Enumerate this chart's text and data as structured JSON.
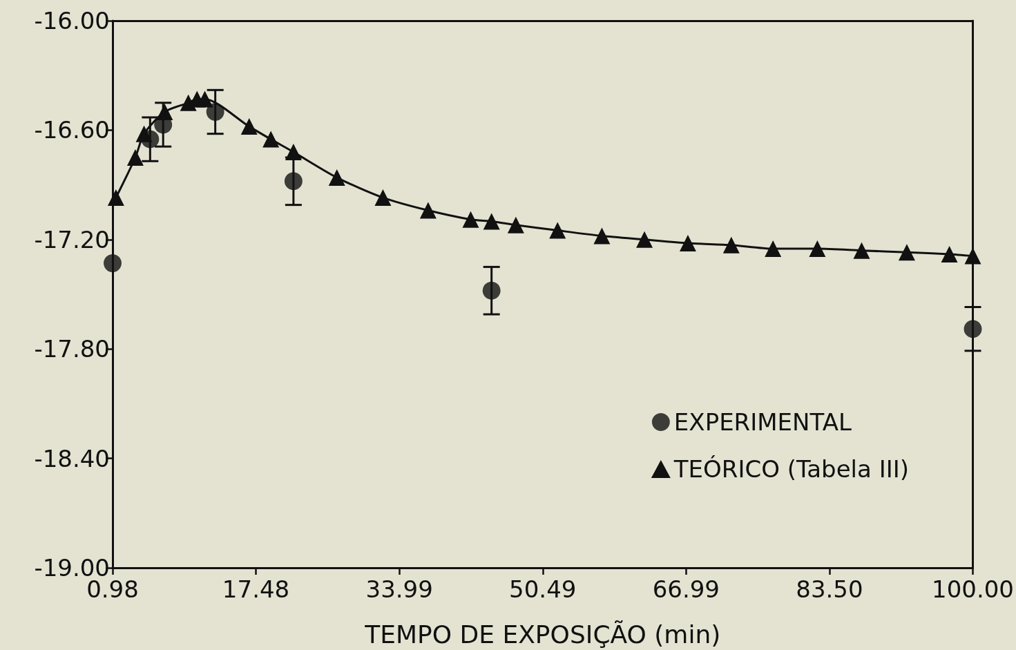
{
  "chart_data": {
    "type": "scatter",
    "xlabel": "TEMPO DE EXPOSIÇÃO (min)",
    "xlim": [
      0.98,
      100
    ],
    "xticks": [
      0.98,
      17.48,
      33.99,
      50.49,
      66.99,
      {
        "value": 83.5,
        "label": "83.50"
      },
      {
        "value": 100,
        "label": "100.00"
      }
    ],
    "ylim": [
      -19,
      -16
    ],
    "yticks": [
      {
        "value": -19,
        "label": "-19.00"
      },
      {
        "value": -18.4,
        "label": "-18.40"
      },
      {
        "value": -17.8,
        "label": "-17.80"
      },
      {
        "value": -17.2,
        "label": "-17.20"
      },
      {
        "value": -16.6,
        "label": "-16.60"
      },
      {
        "value": -16,
        "label": "-16.00"
      }
    ],
    "grid": false,
    "legend": "bottom right",
    "series": [
      {
        "name": "EXPERIMENTAL",
        "marker": "circle",
        "color": "#111111",
        "x": [
          0.98,
          5.3,
          6.8,
          12.8,
          21.8,
          44.6,
          100
        ],
        "values": [
          -17.33,
          -16.65,
          -16.57,
          -16.5,
          -16.88,
          -17.48,
          -17.69
        ],
        "errors": [
          null,
          0.12,
          0.12,
          0.12,
          0.13,
          0.13,
          0.12
        ]
      },
      {
        "name": "TEÓRICO (Tabela III)",
        "type": "line",
        "marker": "triangle",
        "line_style": "solid",
        "color": "#111111",
        "x": [
          1.37,
          3.6,
          4.6,
          6.97,
          9.7,
          10.7,
          11.6,
          16.7,
          19.2,
          21.8,
          26.8,
          32.1,
          37.3,
          42.2,
          44.6,
          47.4,
          52.2,
          57.3,
          62.2,
          67.2,
          72.2,
          77,
          82.1,
          87.2,
          92.4,
          97.3,
          100
        ],
        "values": [
          -16.97,
          -16.75,
          -16.62,
          -16.5,
          -16.45,
          -16.43,
          -16.43,
          -16.58,
          -16.65,
          -16.72,
          -16.86,
          -16.97,
          -17.04,
          -17.09,
          -17.1,
          -17.12,
          -17.15,
          -17.18,
          -17.2,
          -17.22,
          -17.23,
          -17.25,
          -17.25,
          -17.26,
          -17.27,
          -17.28,
          -17.29
        ]
      }
    ]
  }
}
